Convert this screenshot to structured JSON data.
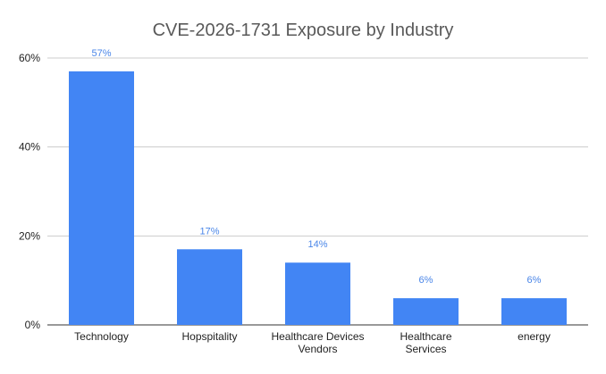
{
  "chart_data": {
    "type": "bar",
    "title": "CVE-2026-1731 Exposure by Industry",
    "xlabel": "",
    "ylabel": "",
    "categories": [
      [
        "Technology"
      ],
      [
        "Hopspitality"
      ],
      [
        "Healthcare Devices",
        "Vendors"
      ],
      [
        "Healthcare",
        "Services"
      ],
      [
        "energy"
      ]
    ],
    "values": [
      57,
      17,
      14,
      6,
      6
    ],
    "data_labels": [
      "57%",
      "17%",
      "14%",
      "6%",
      "6%"
    ],
    "ylim": [
      0,
      60
    ],
    "yticks": [
      0,
      20,
      40,
      60
    ],
    "ytick_labels": [
      "0%",
      "20%",
      "40%",
      "60%"
    ],
    "bar_color": "#4285f4",
    "label_color": "#4a86e8",
    "grid": true,
    "legend": "none"
  }
}
